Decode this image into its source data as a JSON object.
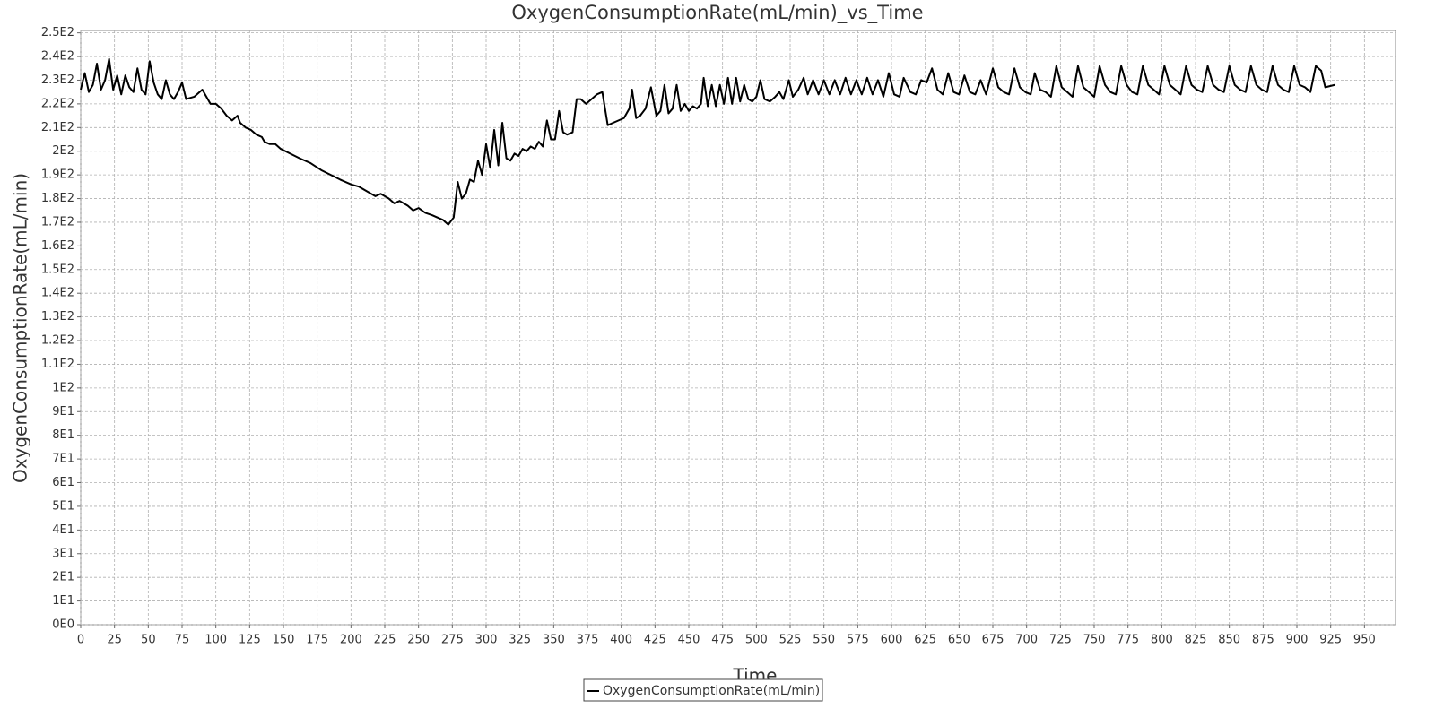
{
  "chart_data": {
    "type": "line",
    "title": "OxygenConsumptionRate(mL/min)_vs_Time",
    "x_label": "Time",
    "y_label": "OxygenConsumptionRate(mL/min)",
    "xlim": [
      0,
      973
    ],
    "ylim": [
      0,
      251
    ],
    "xticks": [
      0,
      25,
      50,
      75,
      100,
      125,
      150,
      175,
      200,
      225,
      250,
      275,
      300,
      325,
      350,
      375,
      400,
      425,
      450,
      475,
      500,
      525,
      550,
      575,
      600,
      625,
      650,
      675,
      700,
      725,
      750,
      775,
      800,
      825,
      850,
      875,
      900,
      925,
      950
    ],
    "yticks": [
      {
        "value": 0,
        "label": "0E0"
      },
      {
        "value": 10,
        "label": "1E1"
      },
      {
        "value": 20,
        "label": "2E1"
      },
      {
        "value": 30,
        "label": "3E1"
      },
      {
        "value": 40,
        "label": "4E1"
      },
      {
        "value": 50,
        "label": "5E1"
      },
      {
        "value": 60,
        "label": "6E1"
      },
      {
        "value": 70,
        "label": "7E1"
      },
      {
        "value": 80,
        "label": "8E1"
      },
      {
        "value": 90,
        "label": "9E1"
      },
      {
        "value": 100,
        "label": "1E2"
      },
      {
        "value": 110,
        "label": "1.1E2"
      },
      {
        "value": 120,
        "label": "1.2E2"
      },
      {
        "value": 130,
        "label": "1.3E2"
      },
      {
        "value": 140,
        "label": "1.4E2"
      },
      {
        "value": 150,
        "label": "1.5E2"
      },
      {
        "value": 160,
        "label": "1.6E2"
      },
      {
        "value": 170,
        "label": "1.7E2"
      },
      {
        "value": 180,
        "label": "1.8E2"
      },
      {
        "value": 190,
        "label": "1.9E2"
      },
      {
        "value": 200,
        "label": "2E2"
      },
      {
        "value": 210,
        "label": "2.1E2"
      },
      {
        "value": 220,
        "label": "2.2E2"
      },
      {
        "value": 230,
        "label": "2.3E2"
      },
      {
        "value": 240,
        "label": "2.4E2"
      },
      {
        "value": 250,
        "label": "2.5E2"
      }
    ],
    "grid": true,
    "x": [
      0,
      3,
      6,
      9,
      12,
      15,
      18,
      21,
      24,
      27,
      30,
      33,
      36,
      39,
      42,
      45,
      48,
      51,
      54,
      57,
      60,
      63,
      66,
      69,
      72,
      75,
      78,
      84,
      90,
      96,
      100,
      104,
      108,
      112,
      116,
      118,
      122,
      126,
      130,
      134,
      136,
      140,
      144,
      148,
      155,
      162,
      170,
      178,
      185,
      192,
      200,
      206,
      212,
      218,
      222,
      228,
      232,
      236,
      242,
      246,
      250,
      255,
      260,
      264,
      268,
      272,
      276,
      279,
      282,
      285,
      288,
      291,
      294,
      297,
      300,
      303,
      306,
      309,
      312,
      315,
      318,
      321,
      324,
      327,
      330,
      333,
      336,
      339,
      342,
      345,
      348,
      351,
      354,
      357,
      360,
      364,
      367,
      370,
      374,
      378,
      382,
      386,
      390,
      394,
      398,
      402,
      406,
      408,
      411,
      414,
      418,
      422,
      426,
      429,
      432,
      435,
      438,
      441,
      444,
      447,
      450,
      453,
      456,
      459,
      461,
      464,
      467,
      470,
      473,
      476,
      479,
      482,
      485,
      488,
      491,
      494,
      497,
      500,
      503,
      506,
      510,
      514,
      517,
      520,
      524,
      527,
      531,
      535,
      538,
      542,
      546,
      550,
      554,
      558,
      562,
      566,
      570,
      574,
      578,
      582,
      586,
      590,
      594,
      598,
      602,
      606,
      609,
      614,
      618,
      622,
      626,
      630,
      634,
      638,
      642,
      646,
      650,
      654,
      658,
      662,
      666,
      670,
      675,
      679,
      683,
      687,
      691,
      695,
      699,
      703,
      706,
      710,
      714,
      718,
      722,
      726,
      730,
      734,
      738,
      742,
      746,
      750,
      754,
      758,
      762,
      766,
      770,
      774,
      778,
      782,
      786,
      790,
      794,
      798,
      802,
      806,
      810,
      814,
      818,
      822,
      826,
      830,
      834,
      838,
      842,
      846,
      850,
      854,
      858,
      862,
      866,
      870,
      874,
      878,
      882,
      886,
      890,
      894,
      898,
      902,
      906,
      910,
      914,
      918,
      921,
      928
    ],
    "series": [
      {
        "name": "OxygenConsumptionRate(mL/min)",
        "color": "#000000",
        "values": [
          226,
          233,
          225,
          228,
          237,
          226,
          230,
          239,
          226,
          232,
          224,
          232,
          227,
          225,
          235,
          226,
          224,
          238,
          229,
          224,
          222,
          230,
          224,
          222,
          225,
          229,
          222,
          223,
          226,
          220,
          220,
          218,
          215,
          213,
          215,
          212,
          210,
          209,
          207,
          206,
          204,
          203,
          203,
          201,
          199,
          197,
          195,
          192,
          190,
          188,
          186,
          185,
          183,
          181,
          182,
          180,
          178,
          179,
          177,
          175,
          176,
          174,
          173,
          172,
          171,
          169,
          172,
          187,
          180,
          182,
          188,
          187,
          196,
          190,
          203,
          193,
          209,
          194,
          212,
          197,
          196,
          199,
          198,
          201,
          200,
          202,
          201,
          204,
          202,
          213,
          205,
          205,
          217,
          208,
          207,
          208,
          222,
          222,
          220,
          222,
          224,
          225,
          211,
          212,
          213,
          214,
          218,
          226,
          214,
          215,
          218,
          227,
          215,
          217,
          228,
          216,
          218,
          228,
          217,
          220,
          217,
          219,
          218,
          220,
          231,
          219,
          228,
          219,
          228,
          220,
          231,
          220,
          231,
          221,
          228,
          222,
          221,
          223,
          230,
          222,
          221,
          223,
          225,
          222,
          230,
          223,
          226,
          231,
          224,
          230,
          224,
          230,
          224,
          230,
          224,
          231,
          224,
          230,
          224,
          231,
          224,
          230,
          223,
          233,
          224,
          223,
          231,
          225,
          224,
          230,
          229,
          235,
          226,
          224,
          233,
          225,
          224,
          232,
          225,
          224,
          230,
          224,
          235,
          227,
          225,
          224,
          235,
          227,
          225,
          224,
          233,
          226,
          225,
          223,
          236,
          227,
          225,
          223,
          236,
          227,
          225,
          223,
          236,
          228,
          225,
          224,
          236,
          228,
          225,
          224,
          236,
          228,
          226,
          224,
          236,
          228,
          226,
          224,
          236,
          228,
          226,
          225,
          236,
          228,
          226,
          225,
          236,
          228,
          226,
          225,
          236,
          228,
          226,
          225,
          236,
          228,
          226,
          225,
          236,
          228,
          227,
          225,
          236,
          234,
          227,
          228
        ]
      }
    ]
  }
}
